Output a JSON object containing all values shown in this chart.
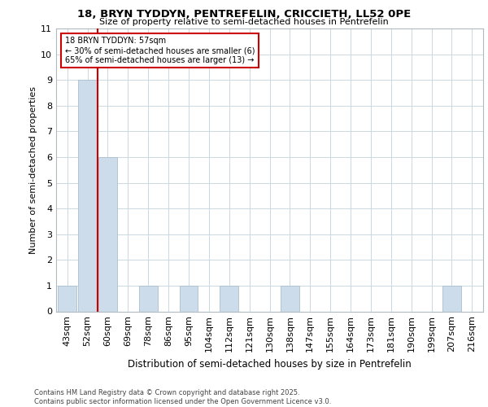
{
  "title_line1": "18, BRYN TYDDYN, PENTREFELIN, CRICCIETH, LL52 0PE",
  "title_line2": "Size of property relative to semi-detached houses in Pentrefelin",
  "xlabel": "Distribution of semi-detached houses by size in Pentrefelin",
  "ylabel": "Number of semi-detached properties",
  "footer_line1": "Contains HM Land Registry data © Crown copyright and database right 2025.",
  "footer_line2": "Contains public sector information licensed under the Open Government Licence v3.0.",
  "categories": [
    "43sqm",
    "52sqm",
    "60sqm",
    "69sqm",
    "78sqm",
    "86sqm",
    "95sqm",
    "104sqm",
    "112sqm",
    "121sqm",
    "130sqm",
    "138sqm",
    "147sqm",
    "155sqm",
    "164sqm",
    "173sqm",
    "181sqm",
    "190sqm",
    "199sqm",
    "207sqm",
    "216sqm"
  ],
  "values": [
    1,
    9,
    6,
    0,
    1,
    0,
    1,
    0,
    1,
    0,
    0,
    1,
    0,
    0,
    0,
    0,
    0,
    0,
    0,
    1,
    0
  ],
  "bar_color": "#cddceb",
  "bar_edgecolor": "#aabfcf",
  "property_line_label": "18 BRYN TYDDYN: 57sqm",
  "annotation_line1": "← 30% of semi-detached houses are smaller (6)",
  "annotation_line2": "65% of semi-detached houses are larger (13) →",
  "annotation_box_color": "#ffffff",
  "annotation_box_edgecolor": "#cc0000",
  "property_line_color": "#cc0000",
  "ylim": [
    0,
    11
  ],
  "yticks": [
    0,
    1,
    2,
    3,
    4,
    5,
    6,
    7,
    8,
    9,
    10,
    11
  ],
  "grid_color": "#ccd8e0",
  "background_color": "#ffffff",
  "plot_background": "#ffffff"
}
